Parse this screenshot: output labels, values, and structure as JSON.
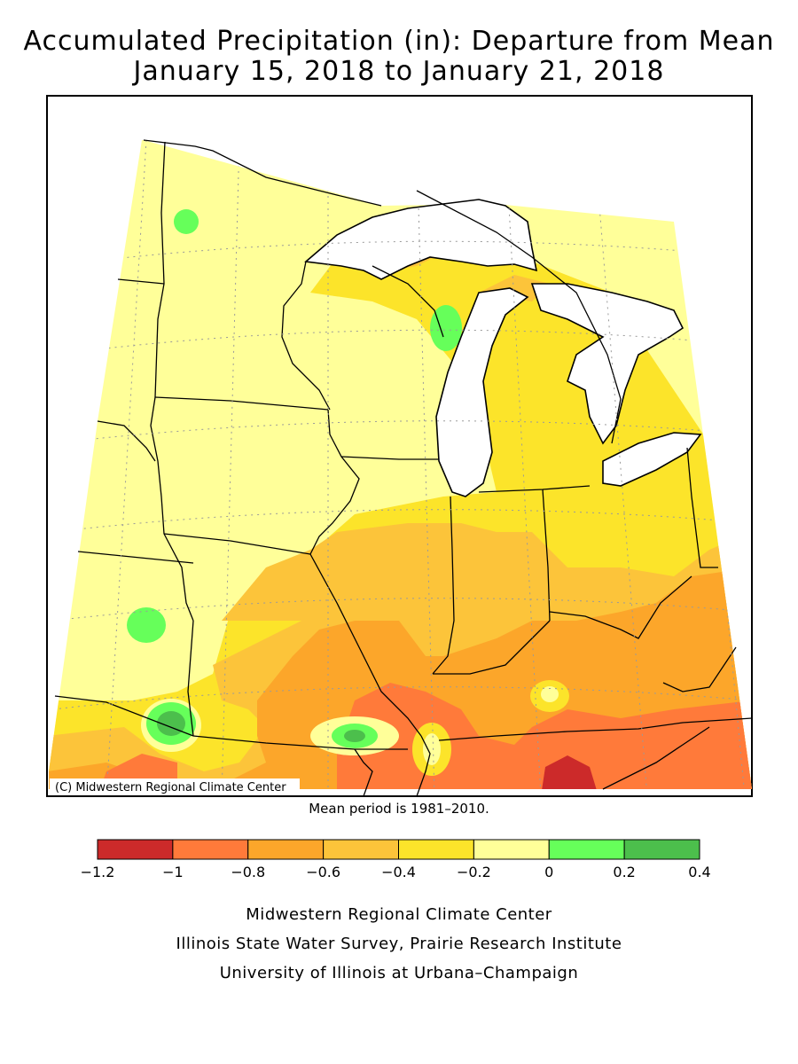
{
  "title_line1": "Accumulated Precipitation (in): Departure from Mean",
  "title_line2": "January 15, 2018 to January 21, 2018",
  "copyright_label": "(C) Midwestern Regional Climate Center",
  "mean_period_note": "Mean period is 1981–2010.",
  "legend": {
    "bins": [
      {
        "from": -1.2,
        "to": -1.0,
        "color": "#cc2a2a"
      },
      {
        "from": -1.0,
        "to": -0.8,
        "color": "#ff7a3a"
      },
      {
        "from": -0.8,
        "to": -0.6,
        "color": "#fca62a"
      },
      {
        "from": -0.6,
        "to": -0.4,
        "color": "#fcc43a"
      },
      {
        "from": -0.4,
        "to": -0.2,
        "color": "#fce42a"
      },
      {
        "from": -0.2,
        "to": 0.0,
        "color": "#ffff99"
      },
      {
        "from": 0.0,
        "to": 0.2,
        "color": "#66ff5a"
      },
      {
        "from": 0.2,
        "to": 0.4,
        "color": "#4cbf4c"
      }
    ],
    "tick_labels": [
      "−1.2",
      "−1",
      "−0.8",
      "−0.6",
      "−0.4",
      "−0.2",
      "0",
      "0.2",
      "0.4"
    ]
  },
  "colors": {
    "water": "#ffffff",
    "border": "#000000",
    "grid": "#9a9a9a"
  },
  "credits": [
    "Midwestern Regional Climate Center",
    "Illinois State Water Survey, Prairie Research Institute",
    "University of Illinois at Urbana–Champaign"
  ]
}
